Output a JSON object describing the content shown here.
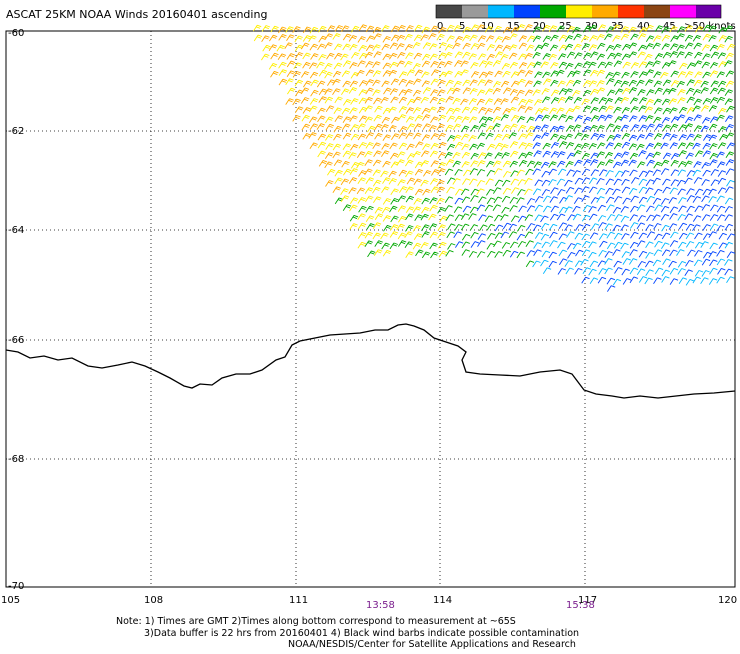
{
  "title": "ASCAT 25KM NOAA Winds 20160401 ascending",
  "legend": {
    "labels": [
      "0",
      "5",
      "10",
      "15",
      "20",
      "25",
      "30",
      "35",
      "40",
      "45",
      ">50 knots"
    ],
    "colors": [
      "#474747",
      "#9a9a9a",
      "#00b7ff",
      "#0043ff",
      "#00a800",
      "#ffee00",
      "#ffaa00",
      "#ff3300",
      "#8b4513",
      "#ff00ff",
      "#6a00a8"
    ]
  },
  "axes": {
    "lat_labels": [
      "-60",
      "-62",
      "-64",
      "-66",
      "-68",
      "-70"
    ],
    "lon_labels": [
      "105",
      "108",
      "111",
      "114",
      "117",
      "120"
    ]
  },
  "pass_times": [
    "13:58",
    "15:38"
  ],
  "notes": [
    "Note: 1) Times are GMT 2)Times along bottom correspond to measurement at ~65S",
    "3)Data buffer is 22 hrs from 20160401 4) Black wind barbs indicate possible contamination",
    "NOAA/NESDIS/Center for Satellite Applications and Research"
  ],
  "colors": {
    "frame": "#000000",
    "gridline": "#000000",
    "coastline": "#000000",
    "time_label": "#7b1f8e"
  }
}
